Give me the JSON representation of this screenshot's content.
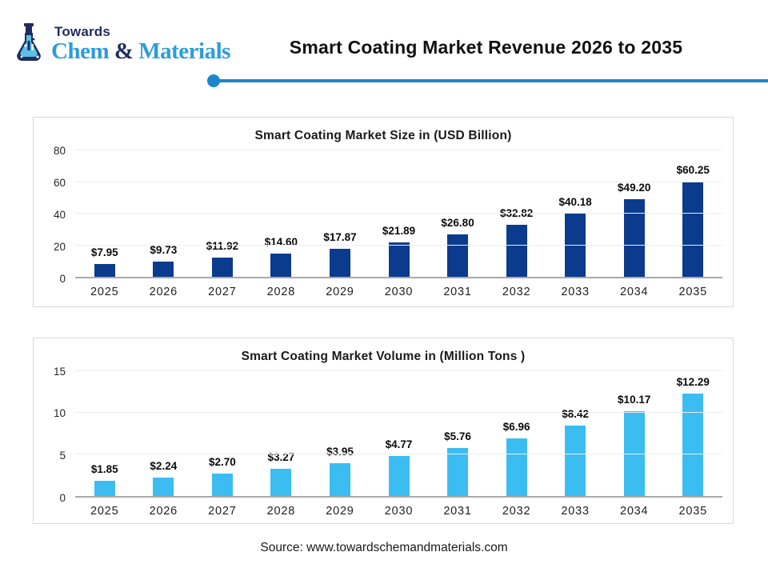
{
  "brand": {
    "line1": "Towards",
    "line2_part1": "Chem",
    "line2_amp": " & ",
    "line2_part2": "Materials",
    "navy_color": "#1f2c5e",
    "blue_color": "#2d9cd9"
  },
  "header": {
    "title": "Smart Coating Market Revenue 2026 to 2035",
    "rule_color": "#1a86cb"
  },
  "footer": {
    "source": "Source: www.towardschemandmaterials.com"
  },
  "chart_data": [
    {
      "type": "bar",
      "title": "Smart Coating Market Size in (USD Billion)",
      "categories": [
        "2025",
        "2026",
        "2027",
        "2028",
        "2029",
        "2030",
        "2031",
        "2032",
        "2033",
        "2034",
        "2035"
      ],
      "values": [
        7.95,
        9.73,
        11.92,
        14.6,
        17.87,
        21.89,
        26.8,
        32.82,
        40.18,
        49.2,
        60.25
      ],
      "labels": [
        "$7.95",
        "$9.73",
        "$11.92",
        "$14.60",
        "$17.87",
        "$21.89",
        "$26.80",
        "$32.82",
        "$40.18",
        "$49.20",
        "$60.25"
      ],
      "bar_color": "#0b3b8d",
      "xlabel": "",
      "ylabel": "",
      "ylim": [
        0,
        80
      ],
      "yticks": [
        0,
        20,
        40,
        60,
        80
      ],
      "grid": true,
      "legend": false
    },
    {
      "type": "bar",
      "title": "Smart Coating Market Volume in (Million Tons )",
      "categories": [
        "2025",
        "2026",
        "2027",
        "2028",
        "2029",
        "2030",
        "2031",
        "2032",
        "2033",
        "2034",
        "2035"
      ],
      "values": [
        1.85,
        2.24,
        2.7,
        3.27,
        3.95,
        4.77,
        5.76,
        6.96,
        8.42,
        10.17,
        12.29
      ],
      "labels": [
        "$1.85",
        "$2.24",
        "$2.70",
        "$3.27",
        "$3.95",
        "$4.77",
        "$5.76",
        "$6.96",
        "$8.42",
        "$10.17",
        "$12.29"
      ],
      "bar_color": "#3bbdf1",
      "xlabel": "",
      "ylabel": "",
      "ylim": [
        0,
        15
      ],
      "yticks": [
        0,
        5,
        10,
        15
      ],
      "grid": true,
      "legend": false
    }
  ]
}
